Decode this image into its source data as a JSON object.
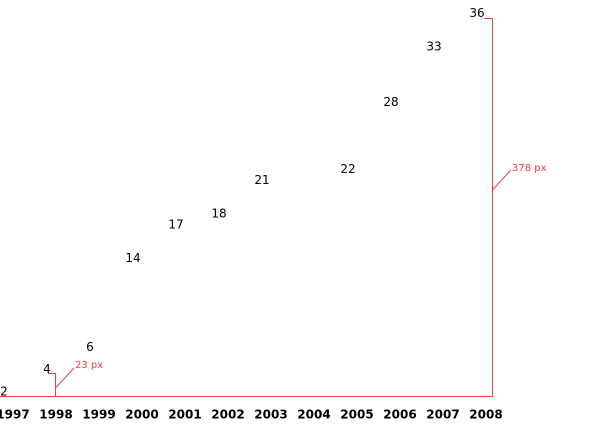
{
  "chart_data": {
    "type": "label",
    "categories": [
      "1997",
      "1998",
      "1999",
      "2000",
      "2001",
      "2002",
      "2003",
      "2004",
      "2005",
      "2006",
      "2007",
      "2008"
    ],
    "values": [
      2,
      4,
      6,
      14,
      17,
      18,
      21,
      null,
      22,
      28,
      33,
      36
    ],
    "color": "#000000",
    "annotations": [
      "23 px",
      "378 px"
    ],
    "annotation_color": "#e8413c"
  }
}
